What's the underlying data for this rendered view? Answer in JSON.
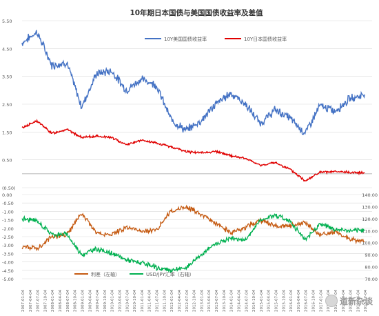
{
  "chart_data": [
    {
      "type": "line",
      "title": "10年期日本国债与美国国债收益率及差值",
      "y_ticks": [
        "5.50",
        "4.50",
        "3.50",
        "2.50",
        "1.50",
        "0.50",
        "(0.50)"
      ],
      "ylim": [
        -0.5,
        5.5
      ],
      "legend_position": "top",
      "series": [
        {
          "name": "10Y美国国债收益率",
          "color": "#4472C4",
          "x": [
            "2007-01",
            "2007-07",
            "2008-01",
            "2008-07",
            "2009-01",
            "2009-07",
            "2010-01",
            "2010-07",
            "2011-01",
            "2011-07",
            "2012-01",
            "2012-07",
            "2013-01",
            "2013-07",
            "2014-01",
            "2014-07",
            "2015-01",
            "2015-07",
            "2016-01",
            "2016-07",
            "2017-01",
            "2017-07",
            "2018-01",
            "2018-07"
          ],
          "values": [
            4.7,
            5.1,
            3.9,
            4.0,
            2.4,
            3.6,
            3.7,
            3.0,
            3.4,
            3.2,
            1.95,
            1.55,
            1.9,
            2.5,
            2.9,
            2.5,
            1.8,
            2.3,
            2.0,
            1.45,
            2.45,
            2.25,
            2.7,
            2.85
          ]
        },
        {
          "name": "10Y日本国债收益率",
          "color": "#E00000",
          "x": [
            "2007-01",
            "2007-07",
            "2008-01",
            "2008-07",
            "2009-01",
            "2009-07",
            "2010-01",
            "2010-07",
            "2011-01",
            "2011-07",
            "2012-01",
            "2012-07",
            "2013-01",
            "2013-07",
            "2014-01",
            "2014-07",
            "2015-01",
            "2015-07",
            "2016-01",
            "2016-07",
            "2017-01",
            "2017-07",
            "2018-01",
            "2018-07"
          ],
          "values": [
            1.65,
            1.9,
            1.45,
            1.6,
            1.3,
            1.35,
            1.3,
            1.05,
            1.2,
            1.1,
            0.97,
            0.8,
            0.75,
            0.8,
            0.65,
            0.55,
            0.3,
            0.4,
            0.15,
            -0.25,
            0.05,
            0.07,
            0.05,
            0.03
          ]
        }
      ]
    },
    {
      "type": "line",
      "left_y_ticks": [
        "0.00",
        "-0.50",
        "-1.00",
        "-1.50",
        "-2.00",
        "-2.50",
        "-3.00",
        "-3.50",
        "-4.00",
        "-4.50",
        "-5.00"
      ],
      "right_y_ticks": [
        "140.00",
        "130.00",
        "120.00",
        "110.00",
        "100.00",
        "90.00",
        "80.00",
        "70.00"
      ],
      "ylim_left": [
        -5.0,
        0.0
      ],
      "ylim_right": [
        70,
        140
      ],
      "legend_position": "bottom",
      "series": [
        {
          "name": "利差（左轴）",
          "axis": "left",
          "color": "#C55A11",
          "x": [
            "2007-01",
            "2007-07",
            "2008-01",
            "2008-07",
            "2009-01",
            "2009-07",
            "2010-01",
            "2010-07",
            "2011-01",
            "2011-07",
            "2012-01",
            "2012-07",
            "2013-01",
            "2013-07",
            "2014-01",
            "2014-07",
            "2015-01",
            "2015-07",
            "2016-01",
            "2016-07",
            "2017-01",
            "2017-07",
            "2018-01",
            "2018-07"
          ],
          "values": [
            -3.1,
            -3.2,
            -2.5,
            -2.4,
            -1.1,
            -2.3,
            -2.4,
            -1.95,
            -2.2,
            -2.1,
            -1.0,
            -0.75,
            -1.15,
            -1.7,
            -2.25,
            -1.95,
            -1.5,
            -1.9,
            -1.85,
            -1.7,
            -2.4,
            -2.2,
            -2.65,
            -2.8
          ]
        },
        {
          "name": "USD/JPY汇率（右轴）",
          "axis": "right",
          "color": "#00B050",
          "x": [
            "2007-01",
            "2007-07",
            "2008-01",
            "2008-07",
            "2009-01",
            "2009-07",
            "2010-01",
            "2010-07",
            "2011-01",
            "2011-07",
            "2012-01",
            "2012-07",
            "2013-01",
            "2013-07",
            "2014-01",
            "2014-07",
            "2015-01",
            "2015-07",
            "2016-01",
            "2016-07",
            "2017-01",
            "2017-07",
            "2018-01",
            "2018-07"
          ],
          "values": [
            120,
            118,
            107,
            107,
            90,
            95,
            91,
            86,
            83,
            79,
            77,
            79,
            90,
            99,
            104,
            102,
            119,
            123,
            118,
            102,
            116,
            111,
            110,
            110
          ]
        }
      ]
    }
  ],
  "x_tick_labels": [
    "2007-01-04",
    "2007-04-04",
    "2007-07-04",
    "2007-10-04",
    "2008-01-04",
    "2008-04-04",
    "2008-07-04",
    "2008-10-04",
    "2009-01-04",
    "2009-04-04",
    "2009-07-04",
    "2009-10-04",
    "2010-01-04",
    "2010-04-04",
    "2010-07-04",
    "2010-10-04",
    "2011-01-04",
    "2011-04-04",
    "2011-07-04",
    "2011-10-04",
    "2012-01-04",
    "2012-04-04",
    "2012-07-04",
    "2012-10-04",
    "2013-01-04",
    "2013-04-04",
    "2013-07-04",
    "2013-10-04",
    "2014-01-04",
    "2014-04-04",
    "2014-07-04",
    "2014-10-04",
    "2015-01-04",
    "2015-04-04",
    "2015-07-04",
    "2015-10-04",
    "2016-01-04",
    "2016-04-04",
    "2016-07-04",
    "2016-10-04",
    "2017-01-04",
    "2017-04-04",
    "2017-07-04",
    "2017-10-04",
    "2018-01-04",
    "2018-04-04",
    "2018-07-04"
  ],
  "watermark": {
    "text": "道新杂谈"
  },
  "colors": {
    "grid": "#d9d9d9",
    "axis_text": "#595959",
    "zero_line": "#bfbfbf"
  }
}
